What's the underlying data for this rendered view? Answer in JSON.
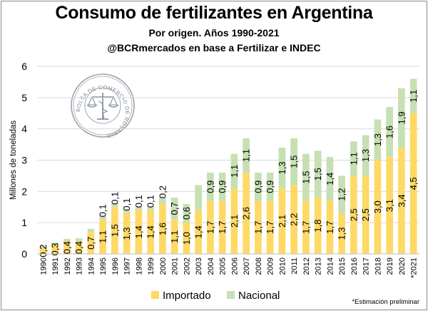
{
  "title": "Consumo de fertilizantes en Argentina",
  "subtitle": "Por origen. Años 1990-2021",
  "source": "@BCRmercados en base a Fertilizar e INDEC",
  "footnote": "*Estimación preliminar",
  "logo_text": "BOLSA DE COMERCIO DE ROSARIO",
  "colors": {
    "importado": "#FFD966",
    "nacional": "#C6E0B4",
    "gridline": "#d9d9d9"
  },
  "chart_data": {
    "type": "bar",
    "stacked": true,
    "ylabel": "Millones de toneladas",
    "xlabel": "",
    "ylim": [
      0,
      6
    ],
    "yticks": [
      0,
      1,
      2,
      3,
      4,
      5,
      6
    ],
    "grid": true,
    "legend": "bottom",
    "categories": [
      "1990",
      "1991",
      "1992",
      "1993",
      "1994",
      "1995",
      "1996",
      "1997",
      "1998",
      "1999",
      "2000",
      "2001",
      "2002",
      "2003",
      "2004",
      "2005",
      "2006",
      "2007",
      "2008",
      "2009",
      "2010",
      "2011",
      "2012",
      "2013",
      "2014",
      "2015",
      "2016",
      "2017",
      "2018",
      "2019",
      "2020",
      "*2021"
    ],
    "series": [
      {
        "name": "Importado",
        "values": [
          0.2,
          0.3,
          0.4,
          0.4,
          0.7,
          1.1,
          1.5,
          1.3,
          1.4,
          1.4,
          1.6,
          1.1,
          1.0,
          1.4,
          1.7,
          1.7,
          2.1,
          2.6,
          1.7,
          1.7,
          2.1,
          2.2,
          1.7,
          1.8,
          1.7,
          1.3,
          2.5,
          2.5,
          3.0,
          3.1,
          3.4,
          4.5
        ],
        "labels": [
          "0,2",
          "0,3",
          "0,4",
          "0,4",
          "0,7",
          "1,1",
          "1,5",
          "1,3",
          "1,4",
          "1,4",
          "1,6",
          "1,1",
          "1,0",
          "1,4",
          "1,7",
          "1,7",
          "2,1",
          "2,6",
          "1,7",
          "1,7",
          "2,1",
          "2,2",
          "1,7",
          "1,8",
          "1,7",
          "1,3",
          "2,5",
          "2,5",
          "3,0",
          "3,1",
          "3,4",
          "4,5"
        ]
      },
      {
        "name": "Nacional",
        "values": [
          0.05,
          0.05,
          0.08,
          0.1,
          0.1,
          0.1,
          0.1,
          0.1,
          0.1,
          0.1,
          0.2,
          0.7,
          0.6,
          0.8,
          0.9,
          0.9,
          1.1,
          1.1,
          0.9,
          0.9,
          1.3,
          1.5,
          1.5,
          1.5,
          1.4,
          1.2,
          1.1,
          1.3,
          1.3,
          1.6,
          1.9,
          1.1
        ],
        "labels": [
          "",
          "",
          "",
          "",
          "",
          "0,1",
          "0,1",
          "0,1",
          "0,1",
          "0,1",
          "0,2",
          "0,7",
          "0,6",
          "",
          "0,9",
          "0,9",
          "1,1",
          "1,1",
          "0,9",
          "0,9",
          "1,3",
          "1,5",
          "1,5",
          "1,5",
          "1,4",
          "1,2",
          "1,1",
          "1,3",
          "1,3",
          "1,6",
          "1,9",
          "1,1"
        ]
      }
    ]
  }
}
